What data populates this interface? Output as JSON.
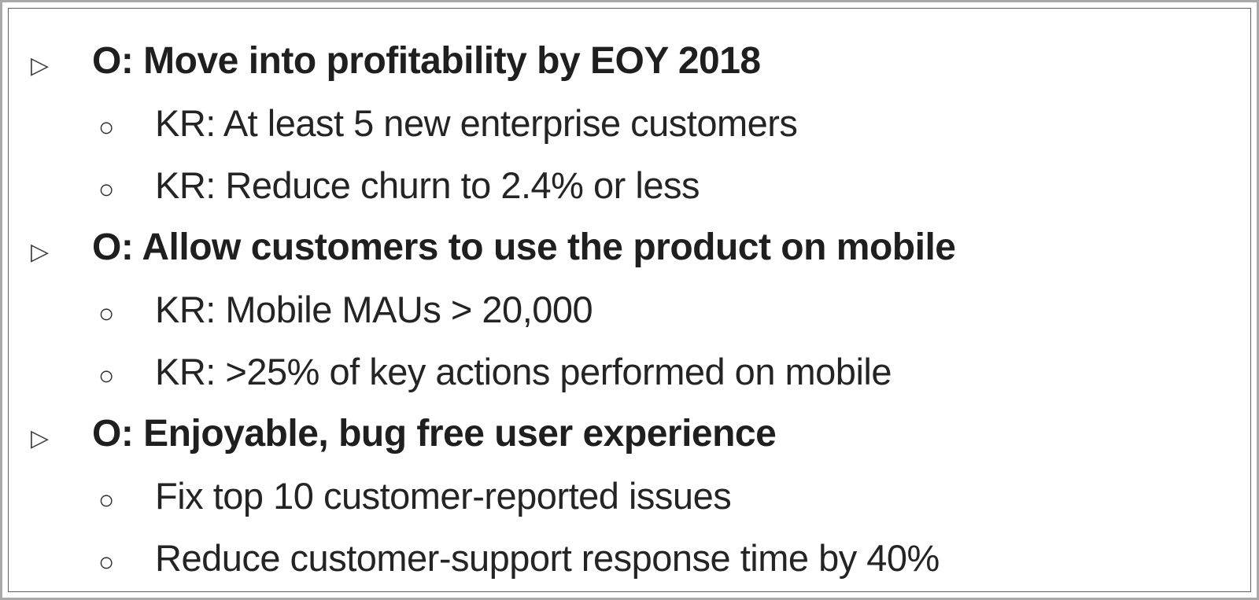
{
  "bullets": {
    "objective": "▷",
    "key_result": "○"
  },
  "outline": {
    "objectives": [
      {
        "label": "O: Move into profitability by EOY 2018",
        "key_results": [
          "KR: At least 5 new enterprise customers",
          "KR: Reduce churn to 2.4% or less"
        ]
      },
      {
        "label": "O: Allow customers to use the product on mobile",
        "key_results": [
          "KR: Mobile MAUs > 20,000",
          "KR: >25% of key actions performed on mobile"
        ]
      },
      {
        "label": "O: Enjoyable, bug free user experience",
        "key_results": [
          "Fix top 10 customer-reported issues",
          "Reduce customer-support response time by 40%"
        ]
      }
    ]
  }
}
